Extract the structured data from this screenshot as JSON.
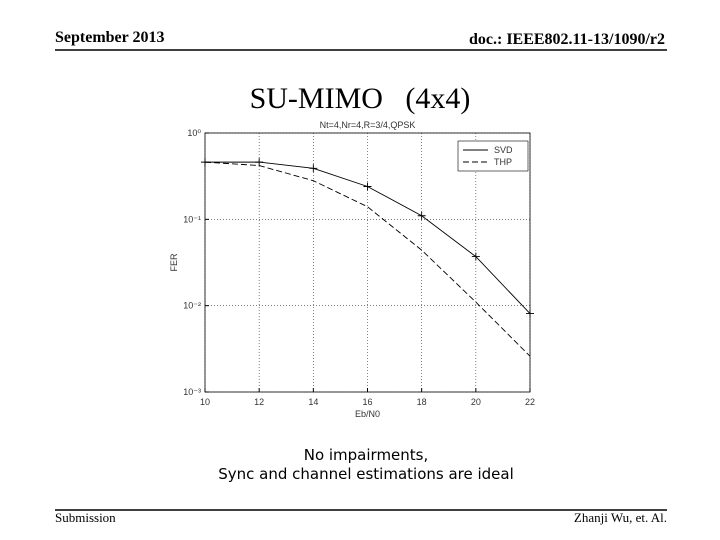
{
  "header": {
    "date": "September 2013",
    "doc": "doc.: IEEE802.11-13/1090/r2"
  },
  "slide_title": "SU-MIMO   (4x4)",
  "chart_data": {
    "type": "line",
    "title": "Nt=4,Nr=4,R=3/4,QPSK",
    "x_label": "Eb/N0",
    "y_label": "FER",
    "x": [
      10,
      12,
      14,
      16,
      18,
      20,
      22
    ],
    "series": [
      {
        "name": "SVD",
        "color": "#000000",
        "dash": "solid",
        "marker": "+",
        "values": [
          0.46,
          0.46,
          0.39,
          0.24,
          0.11,
          0.037,
          0.0081
        ]
      },
      {
        "name": "THP",
        "color": "#000000",
        "dash": "dashed",
        "values": [
          0.46,
          0.42,
          0.28,
          0.14,
          0.044,
          0.011,
          0.0026
        ]
      }
    ],
    "xlim": [
      10,
      22
    ],
    "xticks": [
      10,
      12,
      14,
      16,
      18,
      20,
      22
    ],
    "ylim": [
      0.001,
      1
    ],
    "log_y": true,
    "yticks": [
      {
        "value": 1,
        "label": "10⁰"
      },
      {
        "value": 0.1,
        "label": "10⁻¹"
      },
      {
        "value": 0.01,
        "label": "10⁻²"
      },
      {
        "value": 0.001,
        "label": "10⁻³"
      }
    ],
    "grid": true,
    "legend": "upper right"
  },
  "caption": [
    "No impairments,",
    "Sync and channel estimations are ideal"
  ],
  "footer": {
    "left": "Submission",
    "right": "Zhanji Wu, et. Al."
  }
}
